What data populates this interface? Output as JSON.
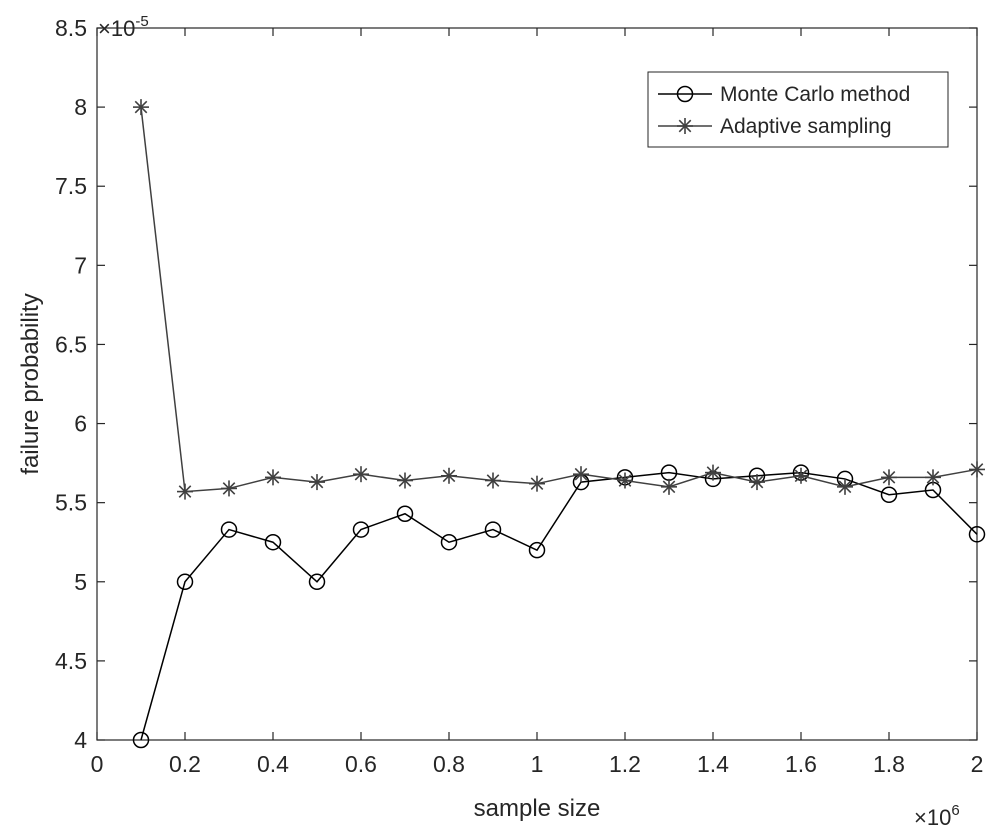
{
  "chart_data": {
    "type": "line",
    "title": "",
    "xlabel": "sample size",
    "ylabel": "failure probability",
    "x_multiplier": "×10^6",
    "y_multiplier": "×10^-5",
    "xlim": [
      0,
      2
    ],
    "ylim": [
      4,
      8.5
    ],
    "x_ticks": [
      "0",
      "0.2",
      "0.4",
      "0.6",
      "0.8",
      "1",
      "1.2",
      "1.4",
      "1.6",
      "1.8",
      "2"
    ],
    "y_ticks": [
      "4",
      "4.5",
      "5",
      "5.5",
      "6",
      "6.5",
      "7",
      "7.5",
      "8",
      "8.5"
    ],
    "grid": false,
    "legend_position": "top-right",
    "x": [
      0.1,
      0.2,
      0.3,
      0.4,
      0.5,
      0.6,
      0.7,
      0.8,
      0.9,
      1.0,
      1.1,
      1.2,
      1.3,
      1.4,
      1.5,
      1.6,
      1.7,
      1.8,
      1.9,
      2.0
    ],
    "series": [
      {
        "name": "Monte Carlo method",
        "marker": "circle",
        "color": "#000000",
        "values": [
          4.0,
          5.0,
          5.33,
          5.25,
          5.0,
          5.33,
          5.43,
          5.25,
          5.33,
          5.2,
          5.63,
          5.66,
          5.69,
          5.65,
          5.67,
          5.69,
          5.65,
          5.55,
          5.58,
          5.3
        ]
      },
      {
        "name": "Adaptive sampling",
        "marker": "star",
        "color": "#404040",
        "values": [
          8.0,
          5.57,
          5.59,
          5.66,
          5.63,
          5.68,
          5.64,
          5.67,
          5.64,
          5.62,
          5.68,
          5.64,
          5.6,
          5.69,
          5.63,
          5.67,
          5.6,
          5.66,
          5.66,
          5.71
        ]
      }
    ]
  }
}
